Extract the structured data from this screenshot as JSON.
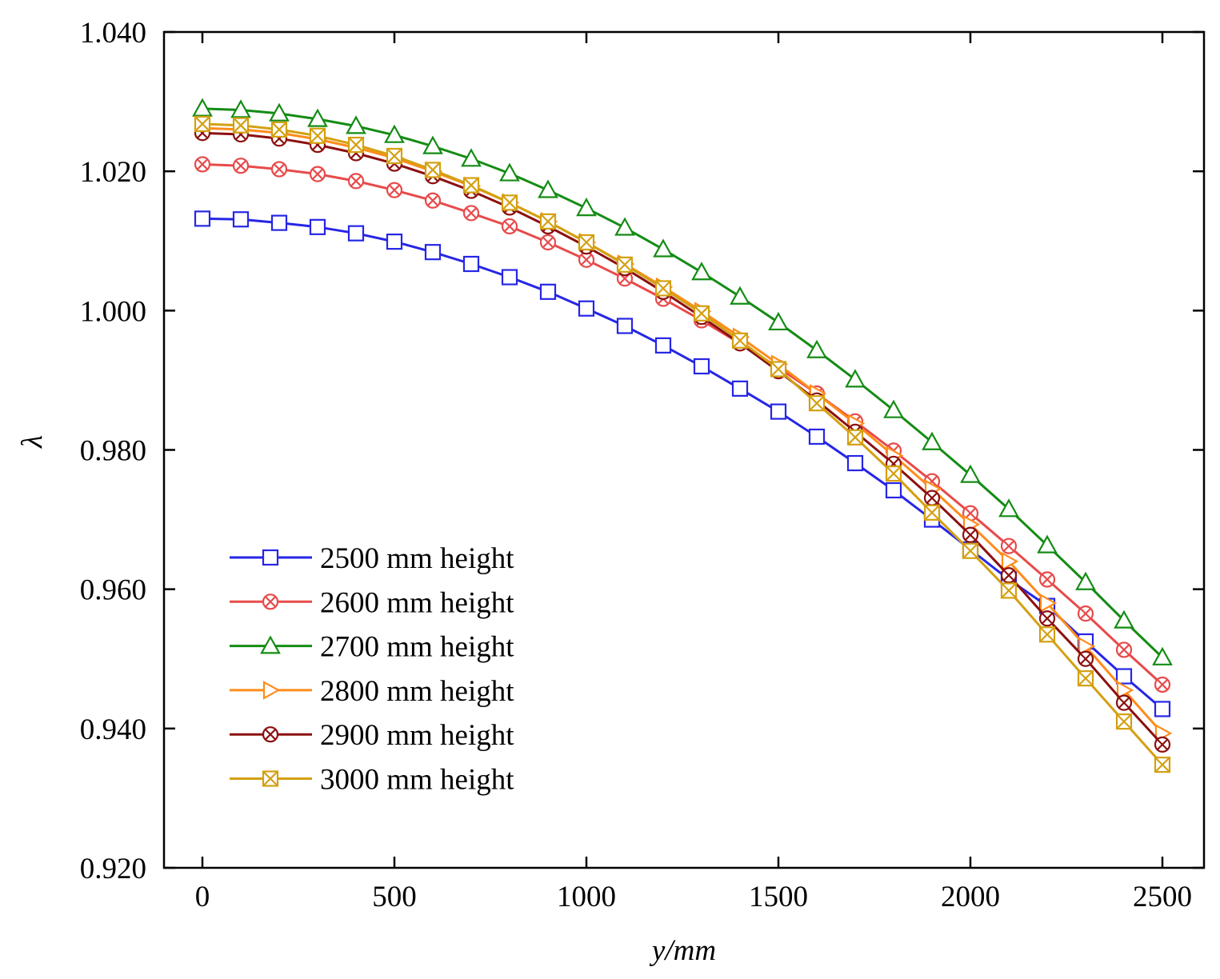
{
  "chart_data": {
    "type": "line",
    "title": "",
    "xlabel": "y/mm",
    "ylabel": "λ",
    "xlim": [
      -100,
      2600
    ],
    "ylim": [
      0.92,
      1.04
    ],
    "grid": false,
    "legend_position": "lower-left",
    "x_ticks": [
      0,
      500,
      1000,
      1500,
      2000,
      2500
    ],
    "x_tick_labels": [
      "0",
      "500",
      "1000",
      "1500",
      "2000",
      "2500"
    ],
    "y_ticks": [
      0.92,
      0.94,
      0.96,
      0.98,
      1.0,
      1.02,
      1.04
    ],
    "y_tick_labels": [
      "0.920",
      "0.940",
      "0.960",
      "0.980",
      "1.000",
      "1.020",
      "1.040"
    ],
    "x": [
      0,
      100,
      200,
      300,
      400,
      500,
      600,
      700,
      800,
      900,
      1000,
      1100,
      1200,
      1300,
      1400,
      1500,
      1600,
      1700,
      1800,
      1900,
      2000,
      2100,
      2200,
      2300,
      2400,
      2500
    ],
    "series": [
      {
        "name": "2500 mm height",
        "color": "#2626e6",
        "marker": "square",
        "values": [
          1.0132,
          1.0131,
          1.0126,
          1.012,
          1.0111,
          1.0099,
          1.0084,
          1.0067,
          1.0048,
          1.0027,
          1.0003,
          0.9978,
          0.995,
          0.992,
          0.9888,
          0.9855,
          0.9819,
          0.9781,
          0.9742,
          0.97,
          0.9657,
          0.9614,
          0.9576,
          0.9525,
          0.9475,
          0.9428
        ]
      },
      {
        "name": "2600 mm height",
        "color": "#e84a4a",
        "marker": "circle-x",
        "values": [
          1.021,
          1.0208,
          1.0203,
          1.0196,
          1.0186,
          1.0173,
          1.0158,
          1.014,
          1.0121,
          1.0098,
          1.0073,
          1.0046,
          1.0017,
          0.9986,
          0.9953,
          0.9918,
          0.9881,
          0.9841,
          0.9799,
          0.9755,
          0.9709,
          0.9662,
          0.9614,
          0.9565,
          0.9513,
          0.9463
        ]
      },
      {
        "name": "2700 mm height",
        "color": "#148c14",
        "marker": "triangle",
        "values": [
          1.029,
          1.0288,
          1.0283,
          1.0275,
          1.0265,
          1.0252,
          1.0236,
          1.0218,
          1.0197,
          1.0173,
          1.0147,
          1.0119,
          1.0088,
          1.0055,
          1.002,
          0.9983,
          0.9943,
          0.9901,
          0.9857,
          0.9811,
          0.9764,
          0.9715,
          0.9663,
          0.961,
          0.9555,
          0.9502
        ]
      },
      {
        "name": "2800 mm height",
        "color": "#ff8c1a",
        "marker": "triangle-right",
        "values": [
          1.0262,
          1.026,
          1.0255,
          1.0246,
          1.0234,
          1.0219,
          1.02,
          1.0179,
          1.0155,
          1.0128,
          1.0098,
          1.0067,
          1.0034,
          0.9999,
          0.9962,
          0.9923,
          0.9881,
          0.9838,
          0.9792,
          0.9744,
          0.9693,
          0.964,
          0.958,
          0.9518,
          0.9455,
          0.9393
        ]
      },
      {
        "name": "2900 mm height",
        "color": "#8b1010",
        "marker": "circle-x",
        "values": [
          1.0255,
          1.0253,
          1.0247,
          1.0238,
          1.0226,
          1.0211,
          1.0193,
          1.0172,
          1.0148,
          1.0121,
          1.0092,
          1.0061,
          1.0027,
          0.9991,
          0.9953,
          0.9913,
          0.9871,
          0.9826,
          0.978,
          0.9731,
          0.9678,
          0.962,
          0.9558,
          0.95,
          0.9437,
          0.9377
        ]
      },
      {
        "name": "3000 mm height",
        "color": "#d4a012",
        "marker": "square-x",
        "values": [
          1.0268,
          1.0266,
          1.026,
          1.0251,
          1.0238,
          1.0222,
          1.0202,
          1.018,
          1.0155,
          1.0128,
          1.0098,
          1.0066,
          1.0032,
          0.9996,
          0.9957,
          0.9916,
          0.9867,
          0.9818,
          0.9766,
          0.971,
          0.9655,
          0.9598,
          0.9535,
          0.9472,
          0.941,
          0.9348
        ]
      }
    ]
  }
}
